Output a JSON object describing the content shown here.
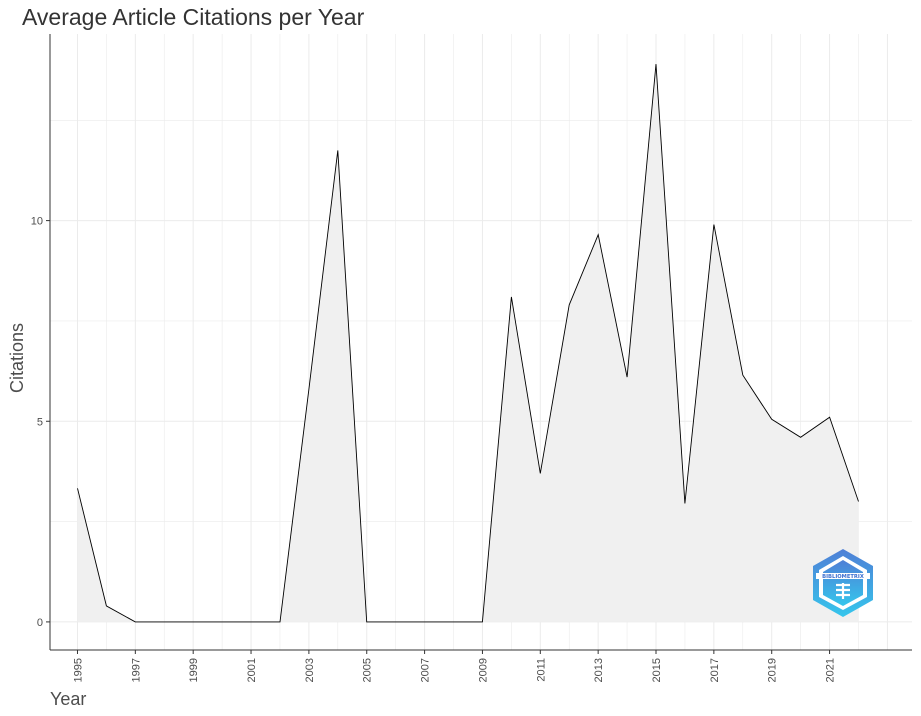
{
  "chart_data": {
    "type": "area",
    "title": "Average Article Citations per Year",
    "xlabel": "Year",
    "ylabel": "Citations",
    "x": [
      1995,
      1996,
      1997,
      1998,
      1999,
      2000,
      2001,
      2002,
      2003,
      2004,
      2005,
      2006,
      2007,
      2008,
      2009,
      2010,
      2011,
      2012,
      2013,
      2014,
      2015,
      2016,
      2017,
      2018,
      2019,
      2020,
      2021,
      2022
    ],
    "values": [
      3.33,
      0.4,
      0,
      0,
      0,
      0,
      0,
      0,
      5.8,
      11.75,
      0,
      0,
      0,
      0,
      0,
      8.1,
      3.7,
      7.9,
      9.65,
      6.1,
      13.9,
      2.95,
      9.9,
      6.15,
      5.05,
      4.6,
      5.1,
      3.0
    ],
    "xticks": [
      "1995",
      "1997",
      "1999",
      "2001",
      "2003",
      "2005",
      "2007",
      "2009",
      "2011",
      "2013",
      "2015",
      "2017",
      "2019",
      "2021"
    ],
    "yticks": [
      "0",
      "5",
      "10"
    ],
    "xlim": [
      1994.05,
      2023.85
    ],
    "ylim": [
      -0.7,
      14.65
    ],
    "grid": true,
    "colors": {
      "line": "#000000",
      "fill": "#f0f0f0",
      "grid": "#ebebeb",
      "axis": "#333333"
    }
  },
  "watermark": {
    "text": "BIBLIOMETRIX",
    "icon": "bibliometrix-logo-icon"
  }
}
